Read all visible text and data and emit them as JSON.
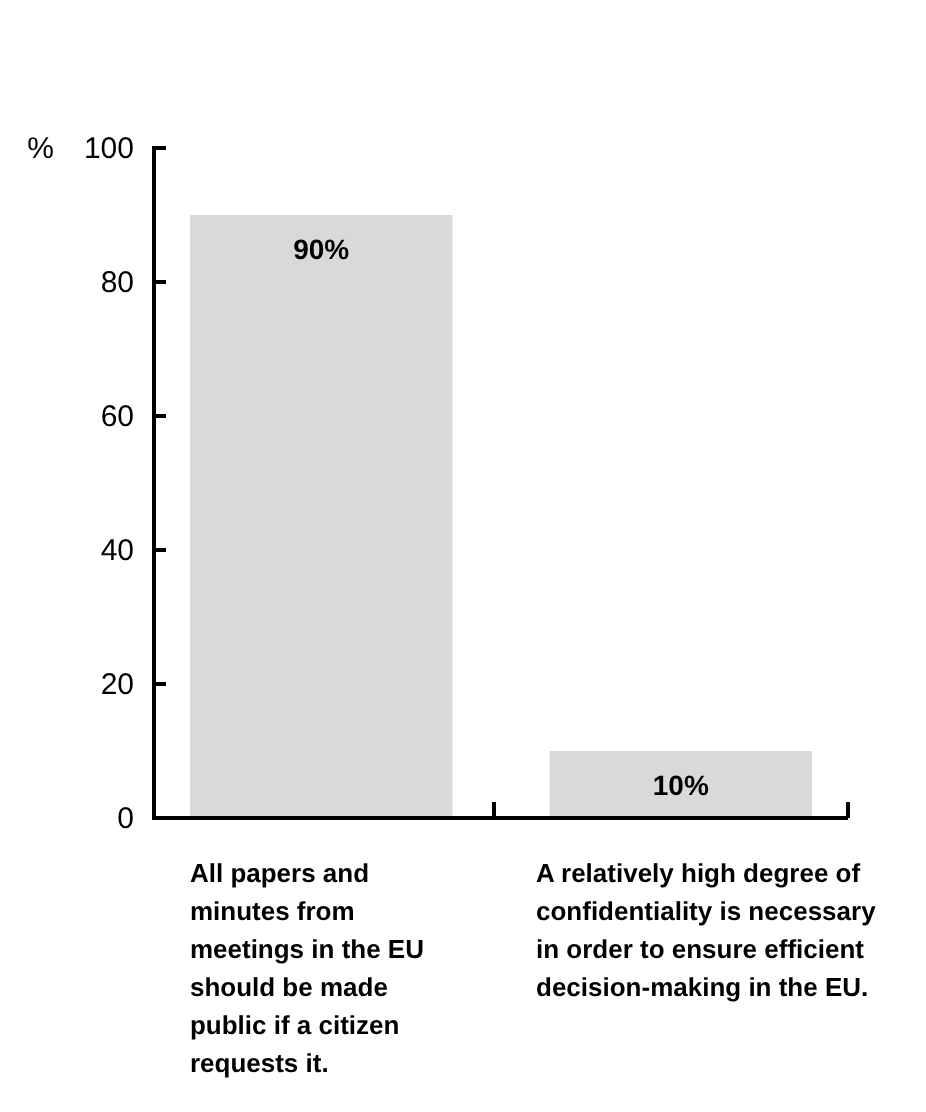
{
  "chart_data": {
    "type": "bar",
    "ylabel": "%",
    "categories": [
      "All papers and minutes from meetings in the EU should be made public if a citizen requests it.",
      "A relatively high degree of confidentiality is necessary in order to ensure efficient decision-making in the EU."
    ],
    "values": [
      90,
      10
    ],
    "color": "#d9d9d9",
    "value_labels": [
      "90%",
      "10%"
    ],
    "ylim": [
      0,
      100
    ],
    "yticks": [
      0,
      20,
      40,
      60,
      80,
      100
    ],
    "grid": false
  }
}
